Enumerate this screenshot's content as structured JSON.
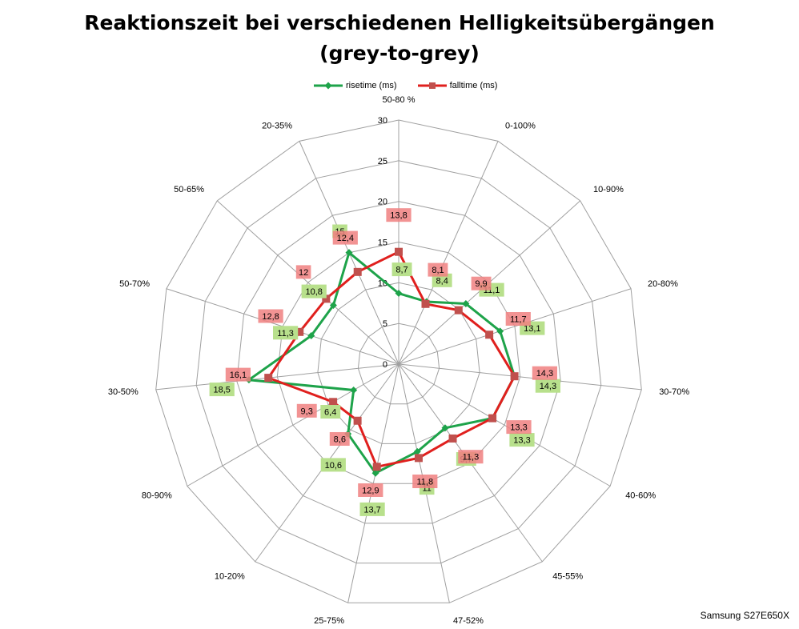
{
  "chart_data": {
    "type": "radar",
    "title_line1": "Reaktionszeit bei verschiedenen Helligkeitsübergängen",
    "title_line2": "(grey-to-grey)",
    "categories": [
      "50-80 %",
      "0-100%",
      "10-90%",
      "20-80%",
      "30-70%",
      "40-60%",
      "45-55%",
      "47-52%",
      "25-75%",
      "10-20%",
      "80-90%",
      "30-50%",
      "50-70%",
      "50-65%",
      "20-35%"
    ],
    "axis_ticks": [
      "0",
      "5",
      "10",
      "15",
      "20",
      "25",
      "30"
    ],
    "rlim": [
      0,
      30
    ],
    "series": [
      {
        "name": "risetime (ms)",
        "color": "#1ea34a",
        "label_bg": "#b8e08c",
        "marker": "diamond",
        "values": [
          8.7,
          8.4,
          11.1,
          13.1,
          14.3,
          13.3,
          9.7,
          11,
          13.7,
          10.6,
          6.4,
          18.5,
          11.3,
          10.8,
          15
        ],
        "labels": [
          "8,7",
          "8,4",
          "11,1",
          "13,1",
          "14,3",
          "13,3",
          "9,7",
          "11",
          "13,7",
          "10,6",
          "6,4",
          "18,5",
          "11,3",
          "10,8",
          "15"
        ]
      },
      {
        "name": "falltime (ms)",
        "color": "#e0201e",
        "label_bg": "#f08080",
        "marker": "square",
        "values": [
          13.8,
          8.1,
          9.9,
          11.7,
          14.3,
          13.3,
          11.3,
          11.8,
          12.9,
          8.6,
          9.3,
          16.1,
          12.8,
          12,
          12.4
        ],
        "labels": [
          "13,8",
          "8,1",
          "9,9",
          "11,7",
          "14,3",
          "13,3",
          "11,3",
          "11,8",
          "12,9",
          "8,6",
          "9,3",
          "16,1",
          "12,8",
          "12",
          "12,4"
        ]
      }
    ],
    "legend_position": "top",
    "grid": true
  },
  "footer": "Samsung S27E650X"
}
